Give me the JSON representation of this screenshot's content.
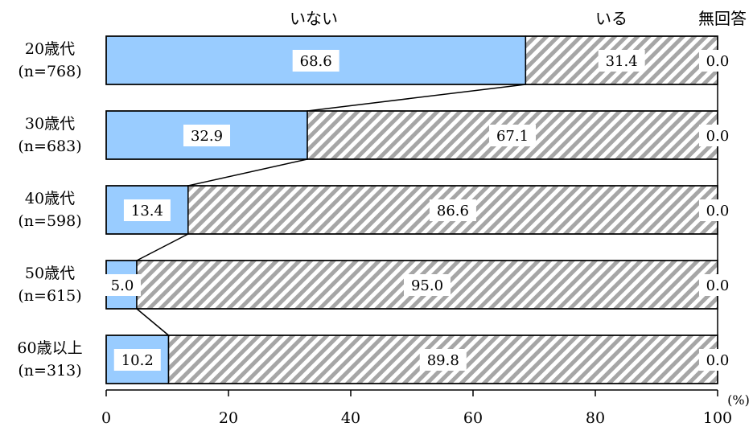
{
  "chart_data": {
    "type": "bar",
    "stacked": true,
    "orientation": "horizontal",
    "categories": [
      {
        "label": "20歳代",
        "n": "(n=768)"
      },
      {
        "label": "30歳代",
        "n": "(n=683)"
      },
      {
        "label": "40歳代",
        "n": "(n=598)"
      },
      {
        "label": "50歳代",
        "n": "(n=615)"
      },
      {
        "label": "60歳以上",
        "n": "(n=313)"
      }
    ],
    "series": [
      {
        "name": "いない",
        "color": "#99ccff",
        "pattern": "solid",
        "values": [
          68.6,
          32.9,
          13.4,
          5.0,
          10.2
        ],
        "labels": [
          "68.6",
          "32.9",
          "13.4",
          "5.0",
          "10.2"
        ]
      },
      {
        "name": "いる",
        "color": "#a6a6a6",
        "pattern": "diagonal-hatch",
        "values": [
          31.4,
          67.1,
          86.6,
          95.0,
          89.8
        ],
        "labels": [
          "31.4",
          "67.1",
          "86.6",
          "95.0",
          "89.8"
        ]
      },
      {
        "name": "無回答",
        "color": "#ffffff",
        "pattern": "solid",
        "values": [
          0.0,
          0.0,
          0.0,
          0.0,
          0.0
        ],
        "labels": [
          "0.0",
          "0.0",
          "0.0",
          "0.0",
          "0.0"
        ]
      }
    ],
    "xlim": [
      0,
      100
    ],
    "x_ticks": [
      "0",
      "20",
      "40",
      "60",
      "80",
      "100"
    ],
    "x_unit": "(%)",
    "legend_placement": "top",
    "connector_lines": true,
    "grid": false
  }
}
